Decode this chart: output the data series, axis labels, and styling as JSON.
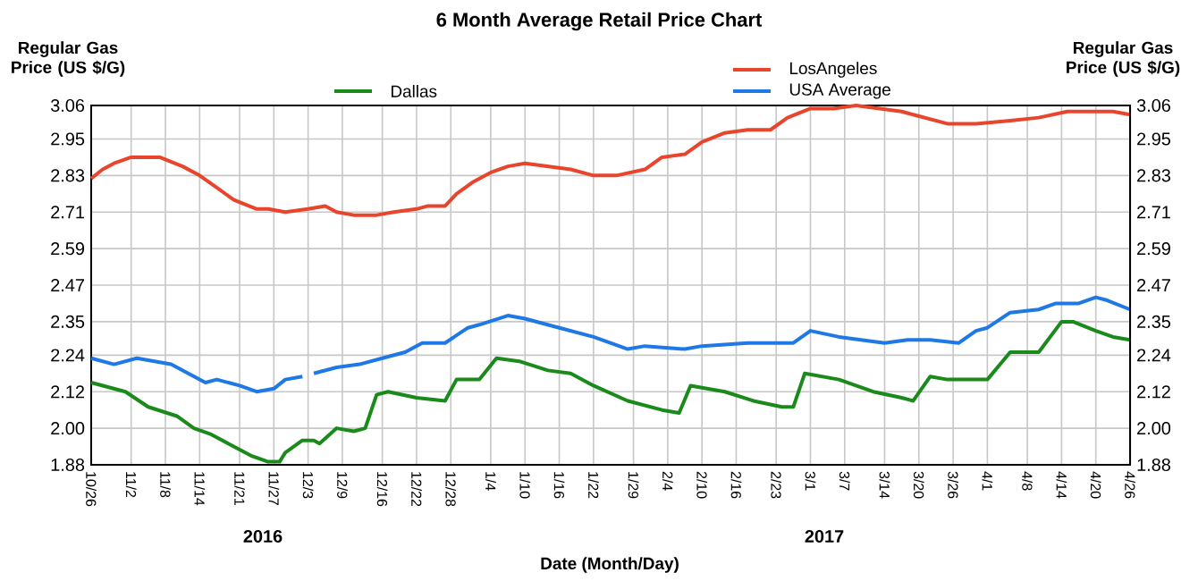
{
  "chart_data": {
    "type": "line",
    "title": "6 Month Average Retail Price Chart",
    "xlabel": "Date (Month/Day)",
    "ylabel": "Regular Gas Price (US $/G)",
    "y2label": "Regular Gas Price (US $/G)",
    "annotations": [
      "2016",
      "2017"
    ],
    "xlim": [
      "2016-10-26",
      "2017-04-26"
    ],
    "xticks": [
      {
        "value": "2016-10-26",
        "label": "10/26"
      },
      {
        "value": "2016-11-02",
        "label": "11/2"
      },
      {
        "value": "2016-11-08",
        "label": "11/8"
      },
      {
        "value": "2016-11-14",
        "label": "11/14"
      },
      {
        "value": "2016-11-21",
        "label": "11/21"
      },
      {
        "value": "2016-11-27",
        "label": "11/27"
      },
      {
        "value": "2016-12-03",
        "label": "12/3"
      },
      {
        "value": "2016-12-09",
        "label": "12/9"
      },
      {
        "value": "2016-12-16",
        "label": "12/16"
      },
      {
        "value": "2016-12-22",
        "label": "12/22"
      },
      {
        "value": "2016-12-28",
        "label": "12/28"
      },
      {
        "value": "2017-01-04",
        "label": "1/4"
      },
      {
        "value": "2017-01-10",
        "label": "1/10"
      },
      {
        "value": "2017-01-16",
        "label": "1/16"
      },
      {
        "value": "2017-01-22",
        "label": "1/22"
      },
      {
        "value": "2017-01-29",
        "label": "1/29"
      },
      {
        "value": "2017-02-04",
        "label": "2/4"
      },
      {
        "value": "2017-02-10",
        "label": "2/10"
      },
      {
        "value": "2017-02-16",
        "label": "2/16"
      },
      {
        "value": "2017-02-23",
        "label": "2/23"
      },
      {
        "value": "2017-03-01",
        "label": "3/1"
      },
      {
        "value": "2017-03-07",
        "label": "3/7"
      },
      {
        "value": "2017-03-14",
        "label": "3/14"
      },
      {
        "value": "2017-03-20",
        "label": "3/20"
      },
      {
        "value": "2017-03-26",
        "label": "3/26"
      },
      {
        "value": "2017-04-01",
        "label": "4/1"
      },
      {
        "value": "2017-04-08",
        "label": "4/8"
      },
      {
        "value": "2017-04-14",
        "label": "4/14"
      },
      {
        "value": "2017-04-20",
        "label": "4/20"
      },
      {
        "value": "2017-04-26",
        "label": "4/26"
      }
    ],
    "ylim": [
      1.88,
      3.06
    ],
    "yticks": [
      1.88,
      {
        "value": 2.0,
        "label": "2.00"
      },
      2.12,
      2.24,
      2.35,
      2.47,
      2.59,
      2.71,
      2.83,
      2.95,
      3.06
    ],
    "y2lim": [
      1.88,
      3.06
    ],
    "y2ticks": [
      1.88,
      {
        "value": 2.0,
        "label": "2.00"
      },
      2.12,
      2.24,
      2.35,
      2.47,
      2.59,
      2.71,
      2.83,
      2.95,
      3.06
    ],
    "grid": true,
    "legend": "top",
    "series": [
      {
        "name": "LosAngeles",
        "color": "#e8452c",
        "x": [
          "2016-10-26",
          "2016-10-28",
          "2016-10-30",
          "2016-11-02",
          "2016-11-07",
          "2016-11-11",
          "2016-11-14",
          "2016-11-17",
          "2016-11-20",
          "2016-11-24",
          "2016-11-26",
          "2016-11-29",
          "2016-12-03",
          "2016-12-06",
          "2016-12-08",
          "2016-12-11",
          "2016-12-15",
          "2016-12-18",
          "2016-12-22",
          "2016-12-24",
          "2016-12-27",
          "2016-12-29",
          "2017-01-01",
          "2017-01-04",
          "2017-01-07",
          "2017-01-10",
          "2017-01-14",
          "2017-01-18",
          "2017-01-22",
          "2017-01-26",
          "2017-01-31",
          "2017-02-03",
          "2017-02-07",
          "2017-02-10",
          "2017-02-14",
          "2017-02-18",
          "2017-02-20",
          "2017-02-22",
          "2017-02-25",
          "2017-03-01",
          "2017-03-05",
          "2017-03-09",
          "2017-03-13",
          "2017-03-17",
          "2017-03-19",
          "2017-03-25",
          "2017-03-30",
          "2017-04-05",
          "2017-04-10",
          "2017-04-15",
          "2017-04-19",
          "2017-04-23",
          "2017-04-26"
        ],
        "values": [
          2.82,
          2.85,
          2.87,
          2.89,
          2.89,
          2.86,
          2.83,
          2.79,
          2.75,
          2.72,
          2.72,
          2.71,
          2.72,
          2.73,
          2.71,
          2.7,
          2.7,
          2.71,
          2.72,
          2.73,
          2.73,
          2.77,
          2.81,
          2.84,
          2.86,
          2.87,
          2.86,
          2.85,
          2.83,
          2.83,
          2.85,
          2.89,
          2.9,
          2.94,
          2.97,
          2.98,
          2.98,
          2.98,
          3.02,
          3.05,
          3.05,
          3.06,
          3.05,
          3.04,
          3.03,
          3.0,
          3.0,
          3.01,
          3.02,
          3.04,
          3.04,
          3.04,
          3.03
        ]
      },
      {
        "name": "USA Average",
        "color": "#1e78e6",
        "x": [
          "2016-10-26",
          "2016-10-30",
          "2016-11-03",
          "2016-11-09",
          "2016-11-15",
          "2016-11-17",
          "2016-11-21",
          "2016-11-24",
          "2016-11-27",
          "2016-11-29",
          "2016-12-02",
          "2016-12-03",
          "2016-12-04",
          "2016-12-08",
          "2016-12-12",
          "2016-12-16",
          "2016-12-20",
          "2016-12-23",
          "2016-12-27",
          "2016-12-31",
          "2017-01-02",
          "2017-01-07",
          "2017-01-10",
          "2017-01-16",
          "2017-01-22",
          "2017-01-28",
          "2017-01-31",
          "2017-02-07",
          "2017-02-10",
          "2017-02-18",
          "2017-02-23",
          "2017-02-26",
          "2017-03-01",
          "2017-03-06",
          "2017-03-14",
          "2017-03-18",
          "2017-03-22",
          "2017-03-27",
          "2017-03-30",
          "2017-04-01",
          "2017-04-05",
          "2017-04-10",
          "2017-04-13",
          "2017-04-17",
          "2017-04-20",
          "2017-04-22",
          "2017-04-26"
        ],
        "values": [
          2.23,
          2.21,
          2.23,
          2.21,
          2.15,
          2.16,
          2.14,
          2.12,
          2.13,
          2.16,
          2.17,
          null,
          2.18,
          2.2,
          2.21,
          2.23,
          2.25,
          2.28,
          2.28,
          2.33,
          2.34,
          2.37,
          2.36,
          2.33,
          2.3,
          2.26,
          2.27,
          2.26,
          2.27,
          2.28,
          2.28,
          2.28,
          2.32,
          2.3,
          2.28,
          2.29,
          2.29,
          2.28,
          2.32,
          2.33,
          2.38,
          2.39,
          2.41,
          2.41,
          2.43,
          2.42,
          2.39
        ]
      },
      {
        "name": "Dallas",
        "color": "#1a8a1a",
        "x": [
          "2016-10-26",
          "2016-11-01",
          "2016-11-05",
          "2016-11-10",
          "2016-11-13",
          "2016-11-16",
          "2016-11-19",
          "2016-11-23",
          "2016-11-26",
          "2016-11-28",
          "2016-11-29",
          "2016-12-02",
          "2016-12-04",
          "2016-12-05",
          "2016-12-08",
          "2016-12-11",
          "2016-12-13",
          "2016-12-15",
          "2016-12-17",
          "2016-12-22",
          "2016-12-27",
          "2016-12-29",
          "2017-01-02",
          "2017-01-05",
          "2017-01-09",
          "2017-01-14",
          "2017-01-18",
          "2017-01-22",
          "2017-01-28",
          "2017-02-03",
          "2017-02-06",
          "2017-02-08",
          "2017-02-14",
          "2017-02-19",
          "2017-02-24",
          "2017-02-26",
          "2017-02-28",
          "2017-03-06",
          "2017-03-12",
          "2017-03-17",
          "2017-03-19",
          "2017-03-22",
          "2017-03-25",
          "2017-04-01",
          "2017-04-05",
          "2017-04-10",
          "2017-04-14",
          "2017-04-16",
          "2017-04-20",
          "2017-04-23",
          "2017-04-26"
        ],
        "values": [
          2.15,
          2.12,
          2.07,
          2.04,
          2.0,
          1.98,
          1.95,
          1.91,
          1.89,
          1.89,
          1.92,
          1.96,
          1.96,
          1.95,
          2.0,
          1.99,
          2.0,
          2.11,
          2.12,
          2.1,
          2.09,
          2.16,
          2.16,
          2.23,
          2.22,
          2.19,
          2.18,
          2.14,
          2.09,
          2.06,
          2.05,
          2.14,
          2.12,
          2.09,
          2.07,
          2.07,
          2.18,
          2.16,
          2.12,
          2.1,
          2.09,
          2.17,
          2.16,
          2.16,
          2.25,
          2.25,
          2.35,
          2.35,
          2.32,
          2.3,
          2.29
        ]
      }
    ]
  }
}
